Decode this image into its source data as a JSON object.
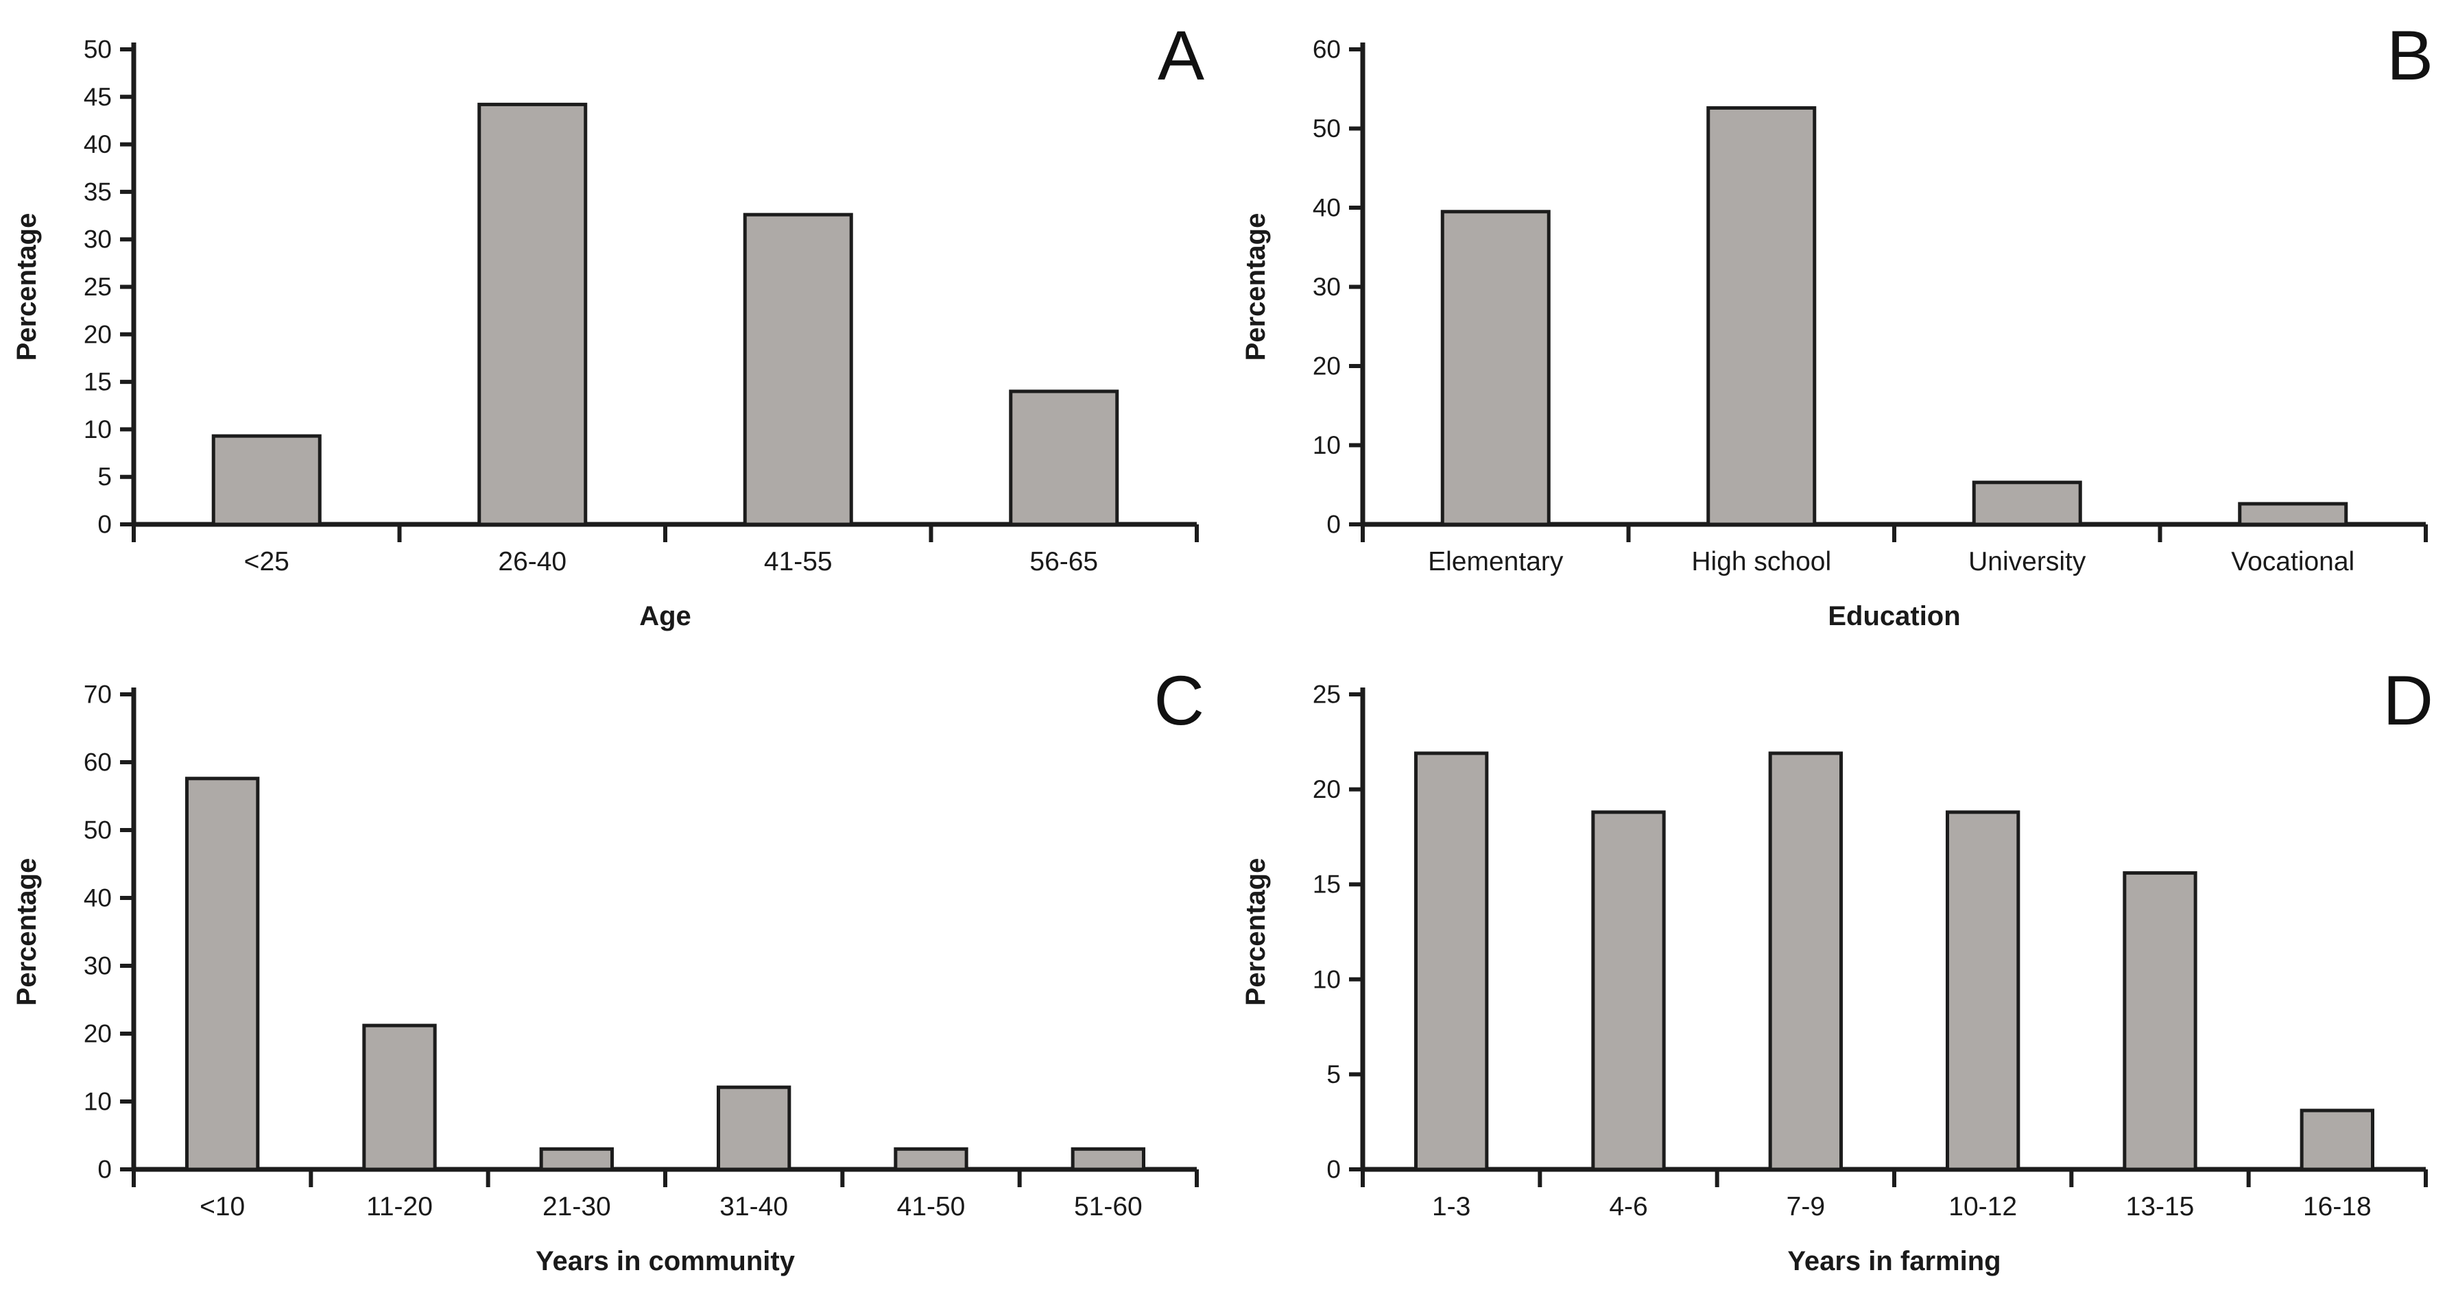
{
  "figure": {
    "background_color": "#ffffff",
    "panel_count": 4,
    "layout": "2x2-grid"
  },
  "style": {
    "bar_fill": "#aeaaa7",
    "bar_stroke": "#1c1c1c",
    "axis_color": "#1c1c1c",
    "text_color": "#1a1a1a"
  },
  "chart_data": [
    {
      "type": "bar",
      "panel_label": "A",
      "title": "",
      "xlabel": "Age",
      "ylabel": "Percentage",
      "categories": [
        "<25",
        "26-40",
        "41-55",
        "56-65"
      ],
      "values": [
        9.3,
        44.2,
        32.6,
        14.0
      ],
      "ylim": [
        0,
        50
      ],
      "ytick_step": 5,
      "grid": false,
      "legend": "none"
    },
    {
      "type": "bar",
      "panel_label": "B",
      "title": "",
      "xlabel": "Education",
      "ylabel": "Percentage",
      "categories": [
        "Elementary",
        "High school",
        "University",
        "Vocational"
      ],
      "values": [
        39.5,
        52.6,
        5.3,
        2.6
      ],
      "ylim": [
        0,
        60
      ],
      "ytick_step": 10,
      "grid": false,
      "legend": "none"
    },
    {
      "type": "bar",
      "panel_label": "C",
      "title": "",
      "xlabel": "Years in community",
      "ylabel": "Percentage",
      "categories": [
        "<10",
        "11-20",
        "21-30",
        "31-40",
        "41-50",
        "51-60"
      ],
      "values": [
        57.6,
        21.2,
        3.0,
        12.1,
        3.0,
        3.0
      ],
      "ylim": [
        0,
        70
      ],
      "ytick_step": 10,
      "grid": false,
      "legend": "none"
    },
    {
      "type": "bar",
      "panel_label": "D",
      "title": "",
      "xlabel": "Years in farming",
      "ylabel": "Percentage",
      "categories": [
        "1-3",
        "4-6",
        "7-9",
        "10-12",
        "13-15",
        "16-18"
      ],
      "values": [
        21.9,
        18.8,
        21.9,
        18.8,
        15.6,
        3.1
      ],
      "ylim": [
        0,
        25
      ],
      "ytick_step": 5,
      "grid": false,
      "legend": "none"
    }
  ]
}
